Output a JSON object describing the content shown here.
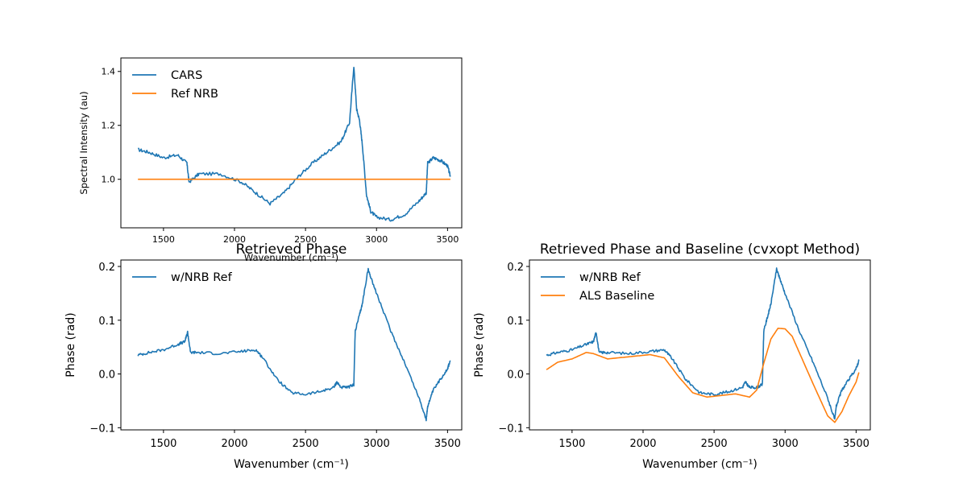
{
  "colors": {
    "cars": "#1f77b4",
    "nrb": "#ff7f0e",
    "axis": "#000000"
  },
  "chart_data": [
    {
      "type": "line",
      "title": "",
      "xlabel": "Wavenumber (cm⁻¹)",
      "ylabel": "Spectral Intensity (au)",
      "xlim": [
        1200,
        3600
      ],
      "ylim": [
        0.82,
        1.45
      ],
      "xticks": [
        1500,
        2000,
        2500,
        3000,
        3500
      ],
      "yticks": [
        1.0,
        1.2,
        1.4
      ],
      "ytick_labels": [
        "1.0",
        "1.2",
        "1.4"
      ],
      "legend_position": "upper-left",
      "series": [
        {
          "name": "CARS",
          "color": "#1f77b4",
          "x": [
            1320,
            1400,
            1500,
            1600,
            1665,
            1680,
            1750,
            1900,
            2050,
            2150,
            2250,
            2350,
            2450,
            2550,
            2650,
            2750,
            2810,
            2840,
            2860,
            2880,
            2900,
            2930,
            2960,
            3000,
            3100,
            3200,
            3300,
            3350,
            3360,
            3400,
            3450,
            3500,
            3520
          ],
          "y": [
            1.11,
            1.1,
            1.08,
            1.09,
            1.06,
            0.99,
            1.02,
            1.02,
            0.99,
            0.95,
            0.91,
            0.95,
            1.01,
            1.06,
            1.1,
            1.14,
            1.21,
            1.42,
            1.26,
            1.22,
            1.13,
            0.94,
            0.88,
            0.86,
            0.85,
            0.87,
            0.92,
            0.95,
            1.06,
            1.08,
            1.07,
            1.05,
            1.01
          ]
        },
        {
          "name": "Ref NRB",
          "color": "#ff7f0e",
          "x": [
            1320,
            3520
          ],
          "y": [
            1.0,
            1.0
          ]
        }
      ]
    },
    {
      "type": "line",
      "title": "Retrieved Phase",
      "xlabel": "Wavenumber (cm⁻¹)",
      "ylabel": "Phase (rad)",
      "xlim": [
        1200,
        3600
      ],
      "ylim": [
        -0.104,
        0.212
      ],
      "xticks": [
        1500,
        2000,
        2500,
        3000,
        3500
      ],
      "yticks": [
        -0.1,
        0.0,
        0.1,
        0.2
      ],
      "ytick_labels": [
        "−0.1",
        "0.0",
        "0.1",
        "0.2"
      ],
      "legend_position": "upper-left",
      "series": [
        {
          "name": "w/NRB Ref",
          "color": "#1f77b4",
          "x": [
            1320,
            1400,
            1500,
            1600,
            1650,
            1670,
            1690,
            1750,
            1900,
            2050,
            2150,
            2200,
            2300,
            2400,
            2500,
            2600,
            2700,
            2720,
            2750,
            2800,
            2840,
            2850,
            2880,
            2900,
            2940,
            2960,
            3000,
            3100,
            3200,
            3300,
            3350,
            3360,
            3400,
            3450,
            3500,
            3520
          ],
          "y": [
            0.035,
            0.04,
            0.045,
            0.055,
            0.06,
            0.078,
            0.04,
            0.04,
            0.038,
            0.042,
            0.045,
            0.03,
            -0.01,
            -0.035,
            -0.038,
            -0.033,
            -0.025,
            -0.015,
            -0.025,
            -0.025,
            -0.02,
            0.08,
            0.11,
            0.13,
            0.195,
            0.18,
            0.15,
            0.08,
            0.02,
            -0.045,
            -0.085,
            -0.06,
            -0.03,
            -0.01,
            0.01,
            0.025
          ]
        }
      ]
    },
    {
      "type": "line",
      "title": "Retrieved Phase and Baseline (cvxopt Method)",
      "xlabel": "Wavenumber (cm⁻¹)",
      "ylabel": "Phase (rad)",
      "xlim": [
        1200,
        3600
      ],
      "ylim": [
        -0.104,
        0.212
      ],
      "xticks": [
        1500,
        2000,
        2500,
        3000,
        3500
      ],
      "yticks": [
        -0.1,
        0.0,
        0.1,
        0.2
      ],
      "ytick_labels": [
        "−0.1",
        "0.0",
        "0.1",
        "0.2"
      ],
      "legend_position": "upper-left",
      "series": [
        {
          "name": "w/NRB Ref",
          "color": "#1f77b4",
          "x": [
            1320,
            1400,
            1500,
            1600,
            1650,
            1670,
            1690,
            1750,
            1900,
            2050,
            2150,
            2200,
            2300,
            2400,
            2500,
            2600,
            2700,
            2720,
            2750,
            2800,
            2840,
            2850,
            2880,
            2900,
            2940,
            2960,
            3000,
            3100,
            3200,
            3300,
            3350,
            3360,
            3400,
            3450,
            3500,
            3520
          ],
          "y": [
            0.035,
            0.04,
            0.045,
            0.055,
            0.06,
            0.078,
            0.04,
            0.04,
            0.038,
            0.042,
            0.045,
            0.03,
            -0.01,
            -0.035,
            -0.038,
            -0.033,
            -0.025,
            -0.015,
            -0.025,
            -0.025,
            -0.02,
            0.08,
            0.11,
            0.13,
            0.195,
            0.18,
            0.15,
            0.08,
            0.02,
            -0.045,
            -0.085,
            -0.06,
            -0.03,
            -0.01,
            0.01,
            0.025
          ]
        },
        {
          "name": "ALS Baseline",
          "color": "#ff7f0e",
          "x": [
            1320,
            1400,
            1500,
            1600,
            1650,
            1750,
            1900,
            2050,
            2150,
            2250,
            2350,
            2450,
            2550,
            2650,
            2750,
            2800,
            2850,
            2900,
            2950,
            3000,
            3050,
            3100,
            3200,
            3300,
            3350,
            3400,
            3450,
            3500,
            3520
          ],
          "y": [
            0.008,
            0.022,
            0.028,
            0.04,
            0.038,
            0.028,
            0.032,
            0.036,
            0.03,
            -0.005,
            -0.035,
            -0.043,
            -0.04,
            -0.037,
            -0.043,
            -0.03,
            0.02,
            0.065,
            0.085,
            0.084,
            0.07,
            0.04,
            -0.02,
            -0.078,
            -0.09,
            -0.07,
            -0.04,
            -0.015,
            0.003
          ]
        }
      ]
    }
  ]
}
